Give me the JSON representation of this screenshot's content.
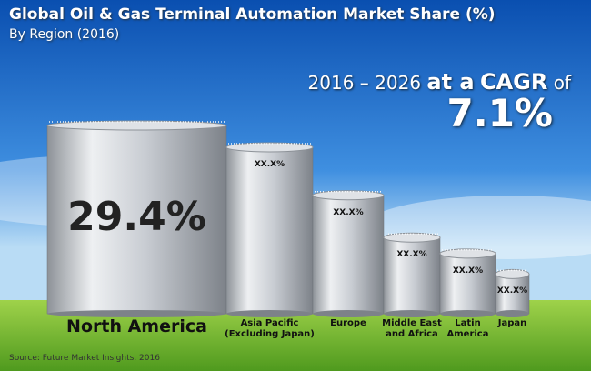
{
  "chart_data": {
    "type": "bar",
    "title": "Global Oil & Gas Terminal Automation Market Share (%)",
    "subtitle": "By Region (2016)",
    "cagr_period": "2016 – 2026",
    "cagr_at": "at a",
    "cagr_word": "CAGR",
    "cagr_of": "of",
    "cagr_value": "7.1%",
    "source": "Source: Future Market Insights, 2016",
    "categories": [
      "North America",
      "Asia Pacific\n(Excluding Japan)",
      "Europe",
      "Middle East\nand Africa",
      "Latin\nAmerica",
      "Japan"
    ],
    "values": [
      29.4,
      26.0,
      18.5,
      11.9,
      9.4,
      6.2
    ],
    "value_labels": [
      "29.4%",
      "XX.X%",
      "XX.X%",
      "XX.X%",
      "XX.X%",
      "XX.X%"
    ],
    "color": "#c8ccd2"
  }
}
